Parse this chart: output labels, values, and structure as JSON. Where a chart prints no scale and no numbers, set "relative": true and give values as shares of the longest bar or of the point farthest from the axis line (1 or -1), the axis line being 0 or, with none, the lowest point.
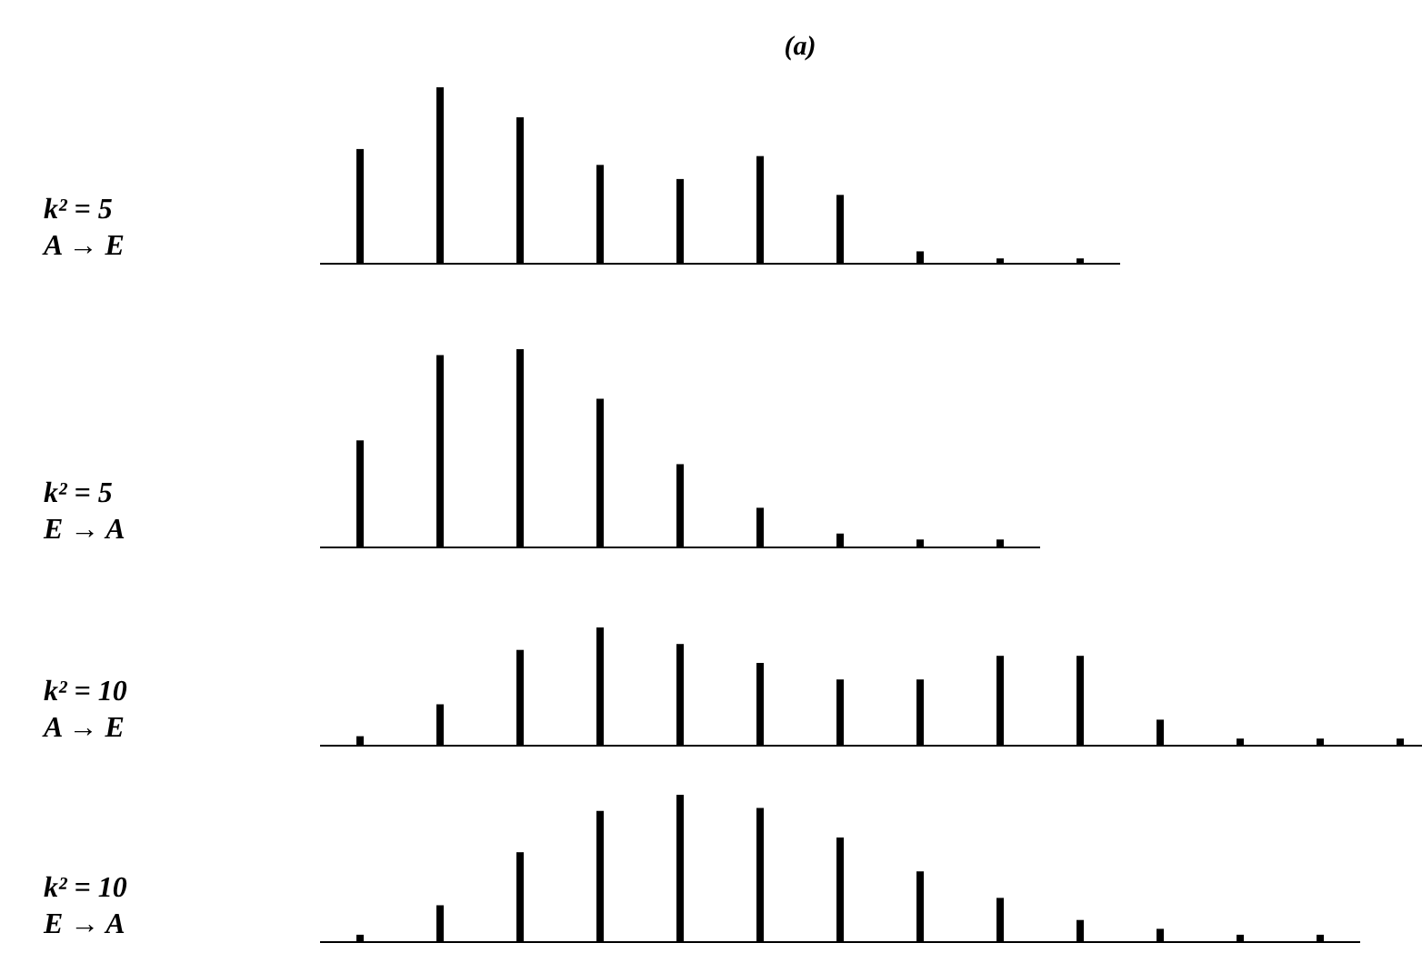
{
  "chart_data": [
    {
      "type": "bar",
      "title": "(a)",
      "ylabel": "k² = 5\nA → E",
      "relative": true,
      "categories": [
        null,
        null,
        null,
        null,
        null,
        null,
        null,
        null,
        null,
        null
      ],
      "values": [
        0.65,
        1,
        0.83,
        0.56,
        0.48,
        0.61,
        0.39,
        0.07,
        0.03,
        0.03
      ],
      "color": "#000000"
    },
    {
      "type": "bar",
      "ylabel": "k² = 5\nE → A",
      "relative": true,
      "categories": [
        null,
        null,
        null,
        null,
        null,
        null,
        null,
        null,
        null
      ],
      "values": [
        0.54,
        0.97,
        1,
        0.75,
        0.42,
        0.2,
        0.07,
        0.04,
        0.04
      ],
      "color": "#000000"
    },
    {
      "type": "bar",
      "ylabel": "k² = 10\nA → E",
      "relative": true,
      "categories": [
        null,
        null,
        null,
        null,
        null,
        null,
        null,
        null,
        null,
        null,
        null,
        null,
        null,
        null
      ],
      "values": [
        0.08,
        0.35,
        0.81,
        1,
        0.86,
        0.7,
        0.56,
        0.56,
        0.76,
        0.76,
        0.22,
        0.06,
        0.06,
        0.06
      ],
      "color": "#000000"
    },
    {
      "type": "bar",
      "ylabel": "k² = 10\nE → A",
      "relative": true,
      "categories": [
        null,
        null,
        null,
        null,
        null,
        null,
        null,
        null,
        null,
        null,
        null,
        null,
        null
      ],
      "values": [
        0.05,
        0.25,
        0.61,
        0.89,
        1,
        0.91,
        0.71,
        0.48,
        0.3,
        0.15,
        0.09,
        0.05,
        0.05
      ],
      "color": "#000000"
    }
  ]
}
